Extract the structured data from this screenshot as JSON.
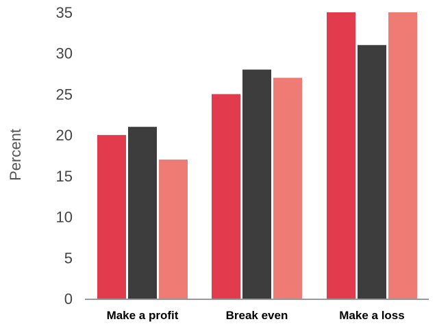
{
  "chart_data": {
    "type": "bar",
    "categories": [
      "Make a profit",
      "Break even",
      "Make a loss"
    ],
    "series": [
      {
        "color": "#e23b4d",
        "values": [
          20,
          25,
          35
        ]
      },
      {
        "color": "#3d3d3d",
        "values": [
          21,
          28,
          31
        ]
      },
      {
        "color": "#ee7b74",
        "values": [
          17,
          27,
          35
        ]
      }
    ],
    "ylabel": "Percent",
    "xlabel": "",
    "ylim": [
      0,
      35
    ],
    "yticks": [
      0,
      5,
      10,
      15,
      20,
      25,
      30,
      35
    ],
    "grid": false,
    "legend": "none"
  }
}
